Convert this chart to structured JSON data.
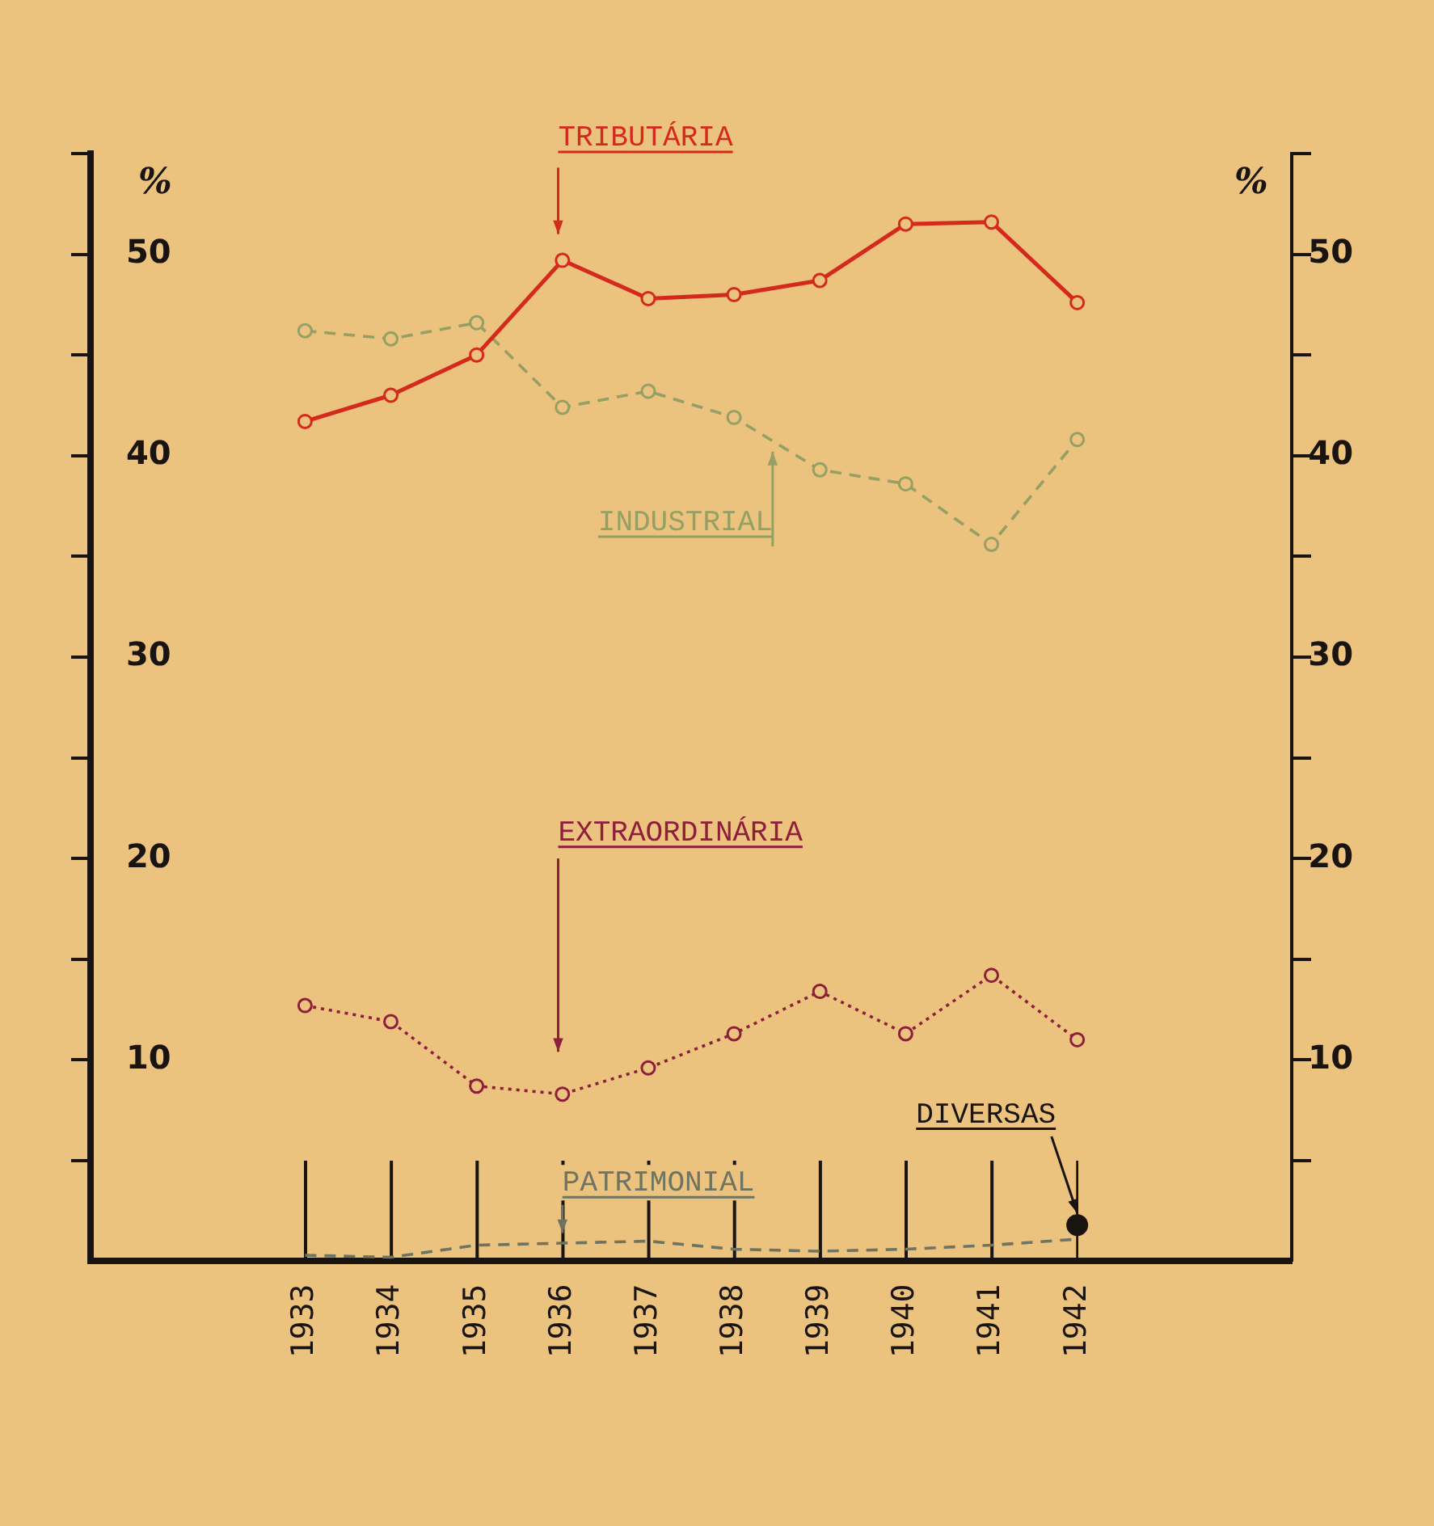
{
  "chart_data": {
    "type": "line",
    "ylabel": "%",
    "y2label": "%",
    "x": [
      1933,
      1934,
      1935,
      1936,
      1937,
      1938,
      1939,
      1940,
      1941,
      1942
    ],
    "xlim": [
      1930.5,
      1944.5
    ],
    "xticks": [
      1933,
      1934,
      1935,
      1936,
      1937,
      1938,
      1939,
      1940,
      1941,
      1942
    ],
    "ylim": [
      0,
      55
    ],
    "yticks": [
      {
        "value": 5,
        "label": null
      },
      10,
      {
        "value": 15,
        "label": null
      },
      20,
      {
        "value": 25,
        "label": null
      },
      30,
      {
        "value": 35,
        "label": null
      },
      40,
      {
        "value": 45,
        "label": null
      },
      50,
      {
        "value": 55,
        "label": null
      }
    ],
    "y2lim": [
      0,
      55
    ],
    "y2ticks": [
      {
        "value": 5,
        "label": null
      },
      10,
      {
        "value": 15,
        "label": null
      },
      20,
      {
        "value": 25,
        "label": null
      },
      30,
      {
        "value": 35,
        "label": null
      },
      40,
      {
        "value": 45,
        "label": null
      },
      50,
      {
        "value": 55,
        "label": null
      }
    ],
    "grid": false,
    "legend": false,
    "series": [
      {
        "name": "TRIBUTÁRIA",
        "color": "#d42a1e",
        "marker": "circle",
        "line_style": "solid",
        "values": [
          41.7,
          43.0,
          45.0,
          49.7,
          47.8,
          48.0,
          48.7,
          51.5,
          51.6,
          47.6
        ]
      },
      {
        "name": "INDUSTRIAL",
        "color": "#94a064",
        "marker": "circle",
        "line_style": "dashed",
        "values": [
          46.2,
          45.8,
          46.6,
          42.4,
          43.2,
          41.9,
          39.3,
          38.6,
          35.6,
          40.8
        ]
      },
      {
        "name": "EXTRAORDINÁRIA",
        "color": "#8e1f3c",
        "marker": "circle",
        "line_style": "dotted",
        "values": [
          12.7,
          11.9,
          8.7,
          8.3,
          9.6,
          11.3,
          13.4,
          11.3,
          14.2,
          11.0
        ]
      },
      {
        "name": "PATRIMONIAL",
        "color": "#6f7460",
        "marker": "none",
        "line_style": "dashed",
        "values": [
          0.3,
          0.2,
          0.8,
          0.9,
          1.0,
          0.6,
          0.5,
          0.6,
          0.8,
          1.1
        ]
      },
      {
        "name": "DIVERSAS",
        "color": "#1a1410",
        "type": "scatter",
        "marker": "circle",
        "values": [
          null,
          null,
          null,
          null,
          null,
          null,
          null,
          null,
          null,
          1.8
        ]
      }
    ]
  }
}
